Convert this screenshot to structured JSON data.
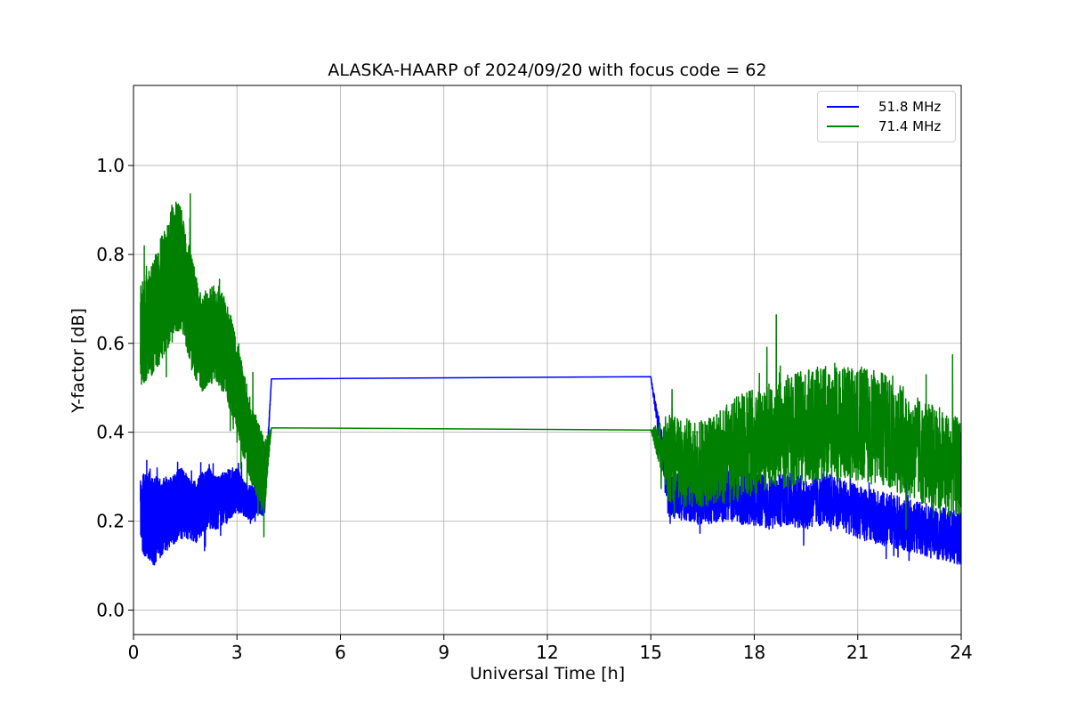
{
  "chart_data": {
    "type": "line",
    "title": "ALASKA-HAARP of 2024/09/20 with focus code = 62",
    "xlabel": "Universal Time [h]",
    "ylabel": "Y-factor [dB]",
    "xlim": [
      0,
      24
    ],
    "ylim": [
      -0.055,
      1.18
    ],
    "xticks": [
      0,
      3,
      6,
      9,
      12,
      15,
      18,
      21,
      24
    ],
    "xtick_labels": [
      "0",
      "3",
      "6",
      "9",
      "12",
      "15",
      "18",
      "21",
      "24"
    ],
    "yticks": [
      0.0,
      0.2,
      0.4,
      0.6,
      0.8,
      1.0
    ],
    "ytick_labels": [
      "0.0",
      "0.2",
      "0.4",
      "0.6",
      "0.8",
      "1.0"
    ],
    "grid": true,
    "legend_position": "top-right",
    "series": [
      {
        "name": "51.8 MHz",
        "color": "#0000ff",
        "x": [
          0.2,
          0.4,
          0.6,
          0.8,
          1.0,
          1.2,
          1.4,
          1.6,
          1.8,
          2.0,
          2.2,
          2.4,
          2.6,
          2.8,
          3.0,
          3.2,
          3.4,
          3.6,
          3.8,
          4.0,
          15.0,
          15.5,
          16.0,
          16.5,
          17.0,
          17.5,
          18.0,
          18.5,
          19.0,
          19.5,
          20.0,
          20.5,
          21.0,
          21.5,
          22.0,
          22.5,
          23.0,
          23.5,
          24.0
        ],
        "y": [
          0.22,
          0.21,
          0.2,
          0.21,
          0.22,
          0.23,
          0.24,
          0.23,
          0.22,
          0.24,
          0.25,
          0.24,
          0.25,
          0.26,
          0.27,
          0.25,
          0.24,
          0.25,
          0.24,
          0.52,
          0.525,
          0.27,
          0.26,
          0.25,
          0.26,
          0.25,
          0.25,
          0.24,
          0.25,
          0.24,
          0.25,
          0.24,
          0.22,
          0.21,
          0.2,
          0.19,
          0.18,
          0.17,
          0.16
        ],
        "noise": [
          0.08,
          0.1,
          0.1,
          0.09,
          0.08,
          0.08,
          0.08,
          0.07,
          0.07,
          0.07,
          0.07,
          0.06,
          0.06,
          0.06,
          0.05,
          0.04,
          0.04,
          0.03,
          0.03,
          0.0,
          0.0,
          0.06,
          0.06,
          0.06,
          0.06,
          0.06,
          0.06,
          0.06,
          0.06,
          0.06,
          0.06,
          0.06,
          0.06,
          0.06,
          0.06,
          0.06,
          0.06,
          0.06,
          0.06
        ]
      },
      {
        "name": "71.4 MHz",
        "color": "#008000",
        "x": [
          0.2,
          0.4,
          0.6,
          0.8,
          1.0,
          1.2,
          1.4,
          1.6,
          1.8,
          2.0,
          2.2,
          2.4,
          2.6,
          2.8,
          3.0,
          3.2,
          3.4,
          3.6,
          3.8,
          4.0,
          15.0,
          15.5,
          16.0,
          16.5,
          17.0,
          17.5,
          18.0,
          18.5,
          19.0,
          19.5,
          20.0,
          20.5,
          21.0,
          21.5,
          22.0,
          22.5,
          23.0,
          23.5,
          24.0
        ],
        "y": [
          0.62,
          0.64,
          0.66,
          0.7,
          0.74,
          0.78,
          0.76,
          0.7,
          0.64,
          0.6,
          0.62,
          0.62,
          0.6,
          0.56,
          0.5,
          0.44,
          0.38,
          0.34,
          0.3,
          0.41,
          0.405,
          0.34,
          0.33,
          0.33,
          0.34,
          0.36,
          0.38,
          0.39,
          0.4,
          0.41,
          0.42,
          0.42,
          0.42,
          0.41,
          0.4,
          0.37,
          0.35,
          0.33,
          0.32
        ],
        "noise": [
          0.12,
          0.12,
          0.13,
          0.14,
          0.15,
          0.15,
          0.14,
          0.13,
          0.12,
          0.11,
          0.11,
          0.11,
          0.11,
          0.11,
          0.1,
          0.1,
          0.09,
          0.09,
          0.08,
          0.0,
          0.0,
          0.1,
          0.1,
          0.1,
          0.11,
          0.12,
          0.12,
          0.12,
          0.13,
          0.13,
          0.13,
          0.13,
          0.13,
          0.13,
          0.13,
          0.12,
          0.12,
          0.12,
          0.11
        ]
      }
    ]
  }
}
